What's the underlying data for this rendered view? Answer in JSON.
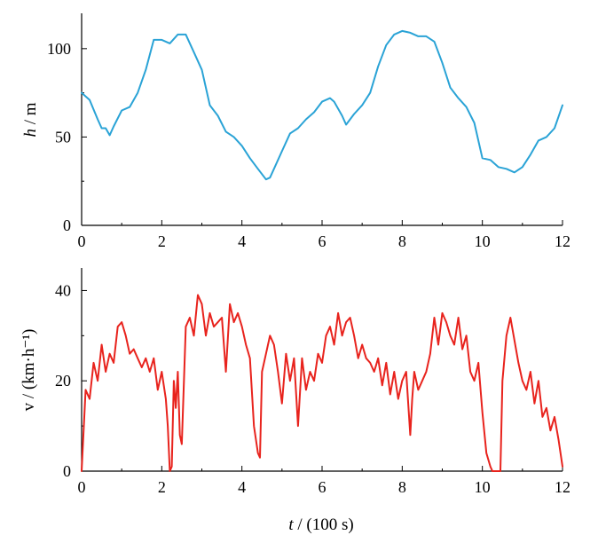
{
  "chart_data": [
    {
      "type": "line",
      "ylabel_italic": "h",
      "ylabel_rest": " / m",
      "xlim": [
        0,
        12
      ],
      "ylim": [
        0,
        120
      ],
      "xticks": [
        "0",
        "2",
        "4",
        "6",
        "8",
        "10",
        "12"
      ],
      "yticks": [
        "0",
        "50",
        "100"
      ],
      "grid": false,
      "color": "#2aa3d6",
      "x": [
        0,
        0.2,
        0.4,
        0.5,
        0.6,
        0.7,
        0.8,
        1.0,
        1.2,
        1.4,
        1.6,
        1.8,
        2.0,
        2.2,
        2.4,
        2.6,
        2.8,
        3.0,
        3.2,
        3.4,
        3.6,
        3.8,
        4.0,
        4.2,
        4.4,
        4.6,
        4.7,
        4.8,
        5.0,
        5.2,
        5.4,
        5.6,
        5.8,
        6.0,
        6.2,
        6.3,
        6.5,
        6.6,
        6.8,
        7.0,
        7.2,
        7.4,
        7.6,
        7.8,
        8.0,
        8.2,
        8.4,
        8.6,
        8.8,
        9.0,
        9.2,
        9.4,
        9.6,
        9.8,
        10.0,
        10.2,
        10.4,
        10.6,
        10.8,
        11.0,
        11.2,
        11.4,
        11.6,
        11.8,
        12.0
      ],
      "y": [
        75,
        71,
        60,
        55,
        55,
        51,
        56,
        65,
        67,
        75,
        88,
        105,
        105,
        103,
        108,
        108,
        98,
        88,
        68,
        62,
        53,
        50,
        45,
        38,
        32,
        26,
        27,
        32,
        42,
        52,
        55,
        60,
        64,
        70,
        72,
        70,
        62,
        57,
        63,
        68,
        75,
        90,
        102,
        108,
        110,
        109,
        107,
        107,
        104,
        92,
        78,
        72,
        67,
        58,
        38,
        37,
        33,
        32,
        30,
        33,
        40,
        48,
        50,
        55,
        68
      ]
    },
    {
      "type": "line",
      "ylabel": "v / (km·h⁻¹)",
      "xlabel_italic": "t",
      "xlabel_rest": " / (100 s)",
      "xlim": [
        0,
        12
      ],
      "ylim": [
        0,
        45
      ],
      "xticks": [
        "0",
        "2",
        "4",
        "6",
        "8",
        "10",
        "12"
      ],
      "yticks": [
        "0",
        "20",
        "40"
      ],
      "grid": false,
      "color": "#e8231d",
      "x": [
        0,
        0.1,
        0.2,
        0.3,
        0.4,
        0.5,
        0.6,
        0.7,
        0.8,
        0.9,
        1.0,
        1.1,
        1.2,
        1.3,
        1.4,
        1.5,
        1.6,
        1.7,
        1.8,
        1.9,
        2.0,
        2.1,
        2.15,
        2.2,
        2.25,
        2.3,
        2.35,
        2.4,
        2.45,
        2.5,
        2.6,
        2.7,
        2.8,
        2.9,
        3.0,
        3.1,
        3.2,
        3.3,
        3.4,
        3.5,
        3.6,
        3.7,
        3.8,
        3.9,
        4.0,
        4.1,
        4.2,
        4.3,
        4.4,
        4.45,
        4.5,
        4.6,
        4.7,
        4.8,
        4.9,
        5.0,
        5.1,
        5.2,
        5.3,
        5.4,
        5.5,
        5.6,
        5.7,
        5.8,
        5.9,
        6.0,
        6.1,
        6.2,
        6.3,
        6.4,
        6.5,
        6.6,
        6.7,
        6.8,
        6.9,
        7.0,
        7.1,
        7.2,
        7.3,
        7.4,
        7.5,
        7.6,
        7.7,
        7.8,
        7.9,
        8.0,
        8.1,
        8.2,
        8.25,
        8.3,
        8.4,
        8.5,
        8.6,
        8.7,
        8.8,
        8.9,
        9.0,
        9.1,
        9.2,
        9.3,
        9.4,
        9.5,
        9.6,
        9.7,
        9.8,
        9.9,
        10.0,
        10.1,
        10.2,
        10.25,
        10.3,
        10.4,
        10.45,
        10.5,
        10.6,
        10.7,
        10.8,
        10.9,
        11.0,
        11.1,
        11.2,
        11.3,
        11.4,
        11.5,
        11.6,
        11.7,
        11.8,
        11.9,
        12.0
      ],
      "y": [
        0,
        18,
        16,
        24,
        20,
        28,
        22,
        26,
        24,
        32,
        33,
        30,
        26,
        27,
        25,
        23,
        25,
        22,
        25,
        18,
        22,
        16,
        10,
        0,
        1,
        20,
        14,
        22,
        8,
        6,
        32,
        34,
        30,
        39,
        37,
        30,
        35,
        32,
        33,
        34,
        22,
        37,
        33,
        35,
        32,
        28,
        25,
        10,
        4,
        3,
        22,
        26,
        30,
        28,
        22,
        15,
        26,
        20,
        25,
        10,
        25,
        18,
        22,
        20,
        26,
        24,
        30,
        32,
        28,
        35,
        30,
        33,
        34,
        30,
        25,
        28,
        25,
        24,
        22,
        25,
        19,
        24,
        17,
        22,
        16,
        20,
        22,
        8,
        16,
        22,
        18,
        20,
        22,
        26,
        34,
        28,
        35,
        33,
        30,
        28,
        34,
        27,
        30,
        22,
        20,
        24,
        13,
        4,
        1,
        0,
        0,
        0,
        0,
        20,
        30,
        34,
        29,
        24,
        20,
        18,
        22,
        15,
        20,
        12,
        14,
        9,
        12,
        7,
        1
      ]
    }
  ]
}
